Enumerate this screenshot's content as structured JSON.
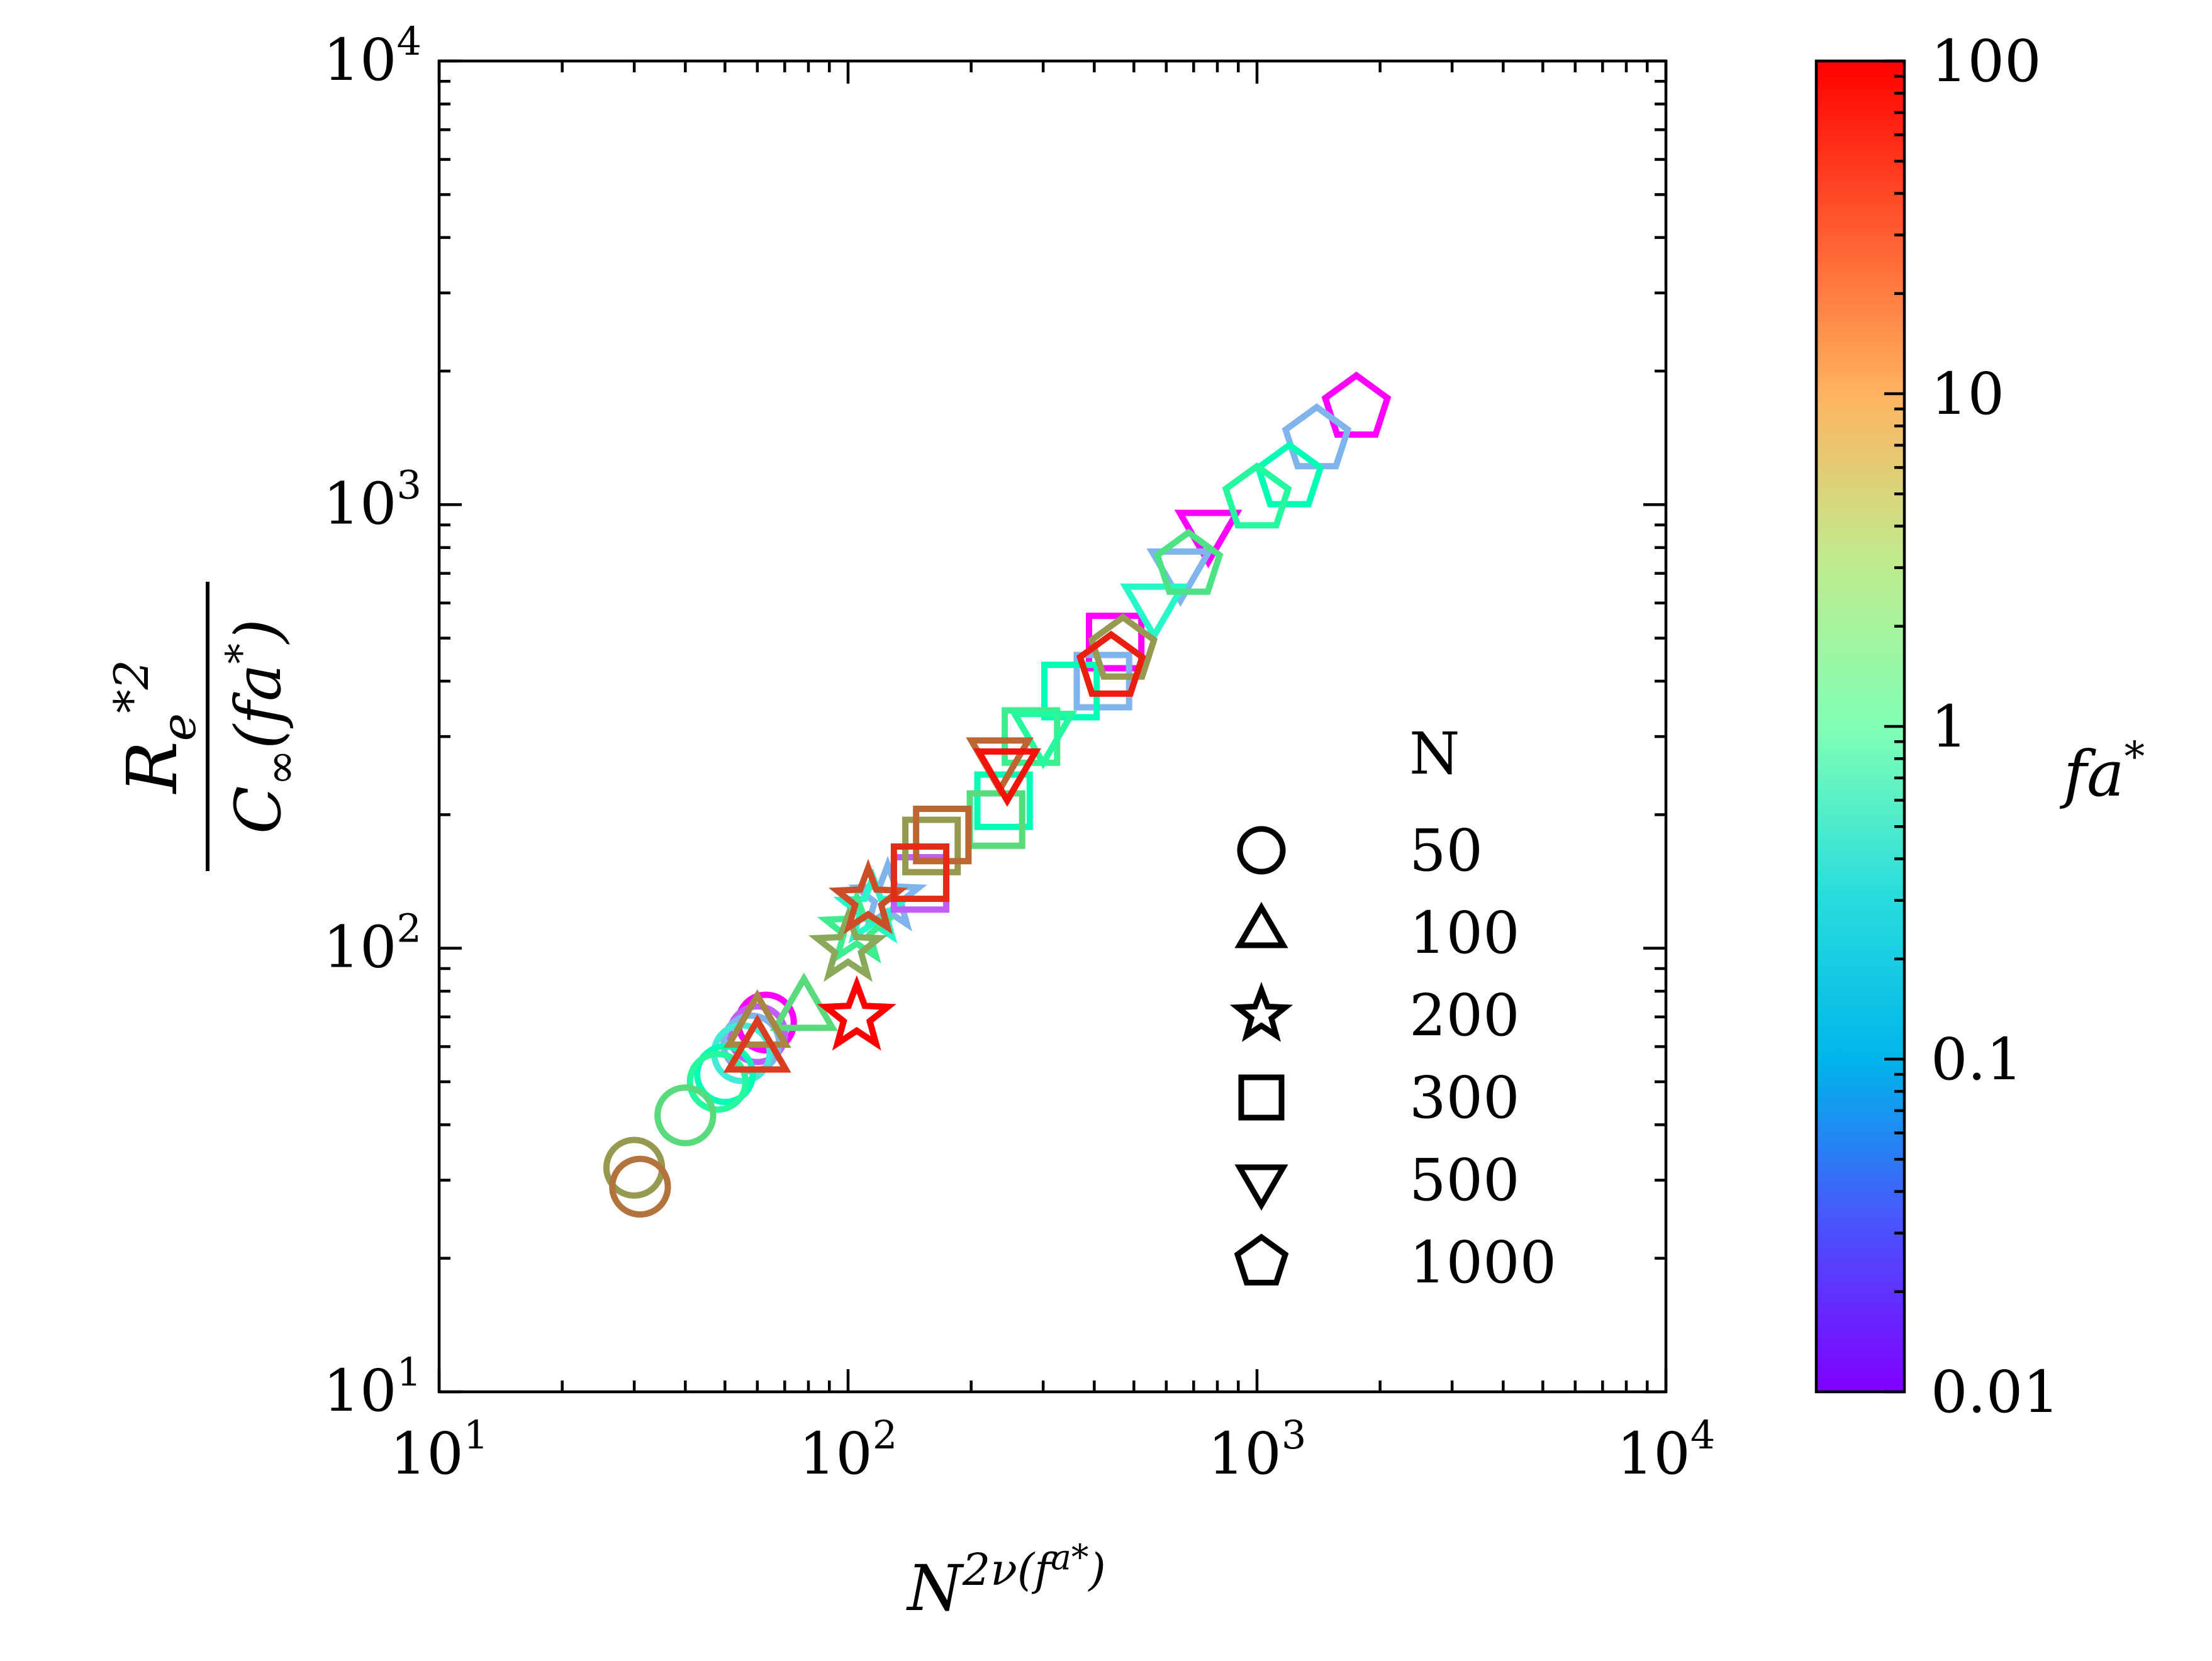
{
  "chart_data": {
    "type": "scatter",
    "xscale": "log",
    "yscale": "log",
    "xlim": [
      10,
      10000
    ],
    "ylim": [
      10,
      10000
    ],
    "xlabel": "N^{2ν(f a*)}",
    "ylabel": "R_e*^2 / C∞(f a*)",
    "x_tick_labels": [
      {
        "value": 10,
        "base": "10",
        "exp": "1"
      },
      {
        "value": 100,
        "base": "10",
        "exp": "2"
      },
      {
        "value": 1000,
        "base": "10",
        "exp": "3"
      },
      {
        "value": 10000,
        "base": "10",
        "exp": "4"
      }
    ],
    "y_tick_labels": [
      {
        "value": 10,
        "base": "10",
        "exp": "1"
      },
      {
        "value": 100,
        "base": "10",
        "exp": "2"
      },
      {
        "value": 1000,
        "base": "10",
        "exp": "3"
      },
      {
        "value": 10000,
        "base": "10",
        "exp": "4"
      }
    ],
    "legend": {
      "title": "N",
      "entries": [
        {
          "N": 50,
          "label": "50",
          "marker": "circle"
        },
        {
          "N": 100,
          "label": "100",
          "marker": "triangle"
        },
        {
          "N": 200,
          "label": "200",
          "marker": "star"
        },
        {
          "N": 300,
          "label": "300",
          "marker": "square"
        },
        {
          "N": 500,
          "label": "500",
          "marker": "triangle-down"
        },
        {
          "N": 1000,
          "label": "1000",
          "marker": "pentagon"
        }
      ]
    },
    "colorbar": {
      "label": "f a*",
      "scale": "log",
      "range": [
        0.01,
        100
      ],
      "colormap": "rainbow",
      "ticks": [
        {
          "value": 0.01,
          "label": "0.01"
        },
        {
          "value": 0.1,
          "label": "0.1"
        },
        {
          "value": 1,
          "label": "1"
        },
        {
          "value": 10,
          "label": "10"
        },
        {
          "value": 100,
          "label": "100"
        }
      ]
    },
    "series": [
      {
        "N": 50,
        "marker": "circle",
        "points": [
          {
            "x": 63,
            "y": 68,
            "fa": 0.01
          },
          {
            "x": 60,
            "y": 64,
            "fa": 0.03
          },
          {
            "x": 58,
            "y": 61,
            "fa": 0.1
          },
          {
            "x": 55,
            "y": 58,
            "fa": 0.3
          },
          {
            "x": 50,
            "y": 52,
            "fa": 1
          },
          {
            "x": 48,
            "y": 50,
            "fa": 2
          },
          {
            "x": 40,
            "y": 42,
            "fa": 5
          },
          {
            "x": 30,
            "y": 32,
            "fa": 15
          },
          {
            "x": 31,
            "y": 29,
            "fa": 25
          }
        ]
      },
      {
        "N": 100,
        "marker": "triangle",
        "points": [
          {
            "x": 78,
            "y": 72,
            "fa": 5
          },
          {
            "x": 60,
            "y": 66,
            "fa": 20
          },
          {
            "x": 60,
            "y": 58,
            "fa": 50
          }
        ]
      },
      {
        "N": 200,
        "marker": "star",
        "points": [
          {
            "x": 125,
            "y": 130,
            "fa": 0.1
          },
          {
            "x": 115,
            "y": 122,
            "fa": 0.5
          },
          {
            "x": 105,
            "y": 110,
            "fa": 3
          },
          {
            "x": 100,
            "y": 100,
            "fa": 12
          },
          {
            "x": 112,
            "y": 128,
            "fa": 40
          },
          {
            "x": 105,
            "y": 70,
            "fa": 100
          }
        ]
      },
      {
        "N": 300,
        "marker": "square",
        "points": [
          {
            "x": 150,
            "y": 140,
            "fa": 0.03
          },
          {
            "x": 240,
            "y": 215,
            "fa": 1
          },
          {
            "x": 230,
            "y": 195,
            "fa": 5
          },
          {
            "x": 160,
            "y": 170,
            "fa": 15
          },
          {
            "x": 170,
            "y": 180,
            "fa": 30
          },
          {
            "x": 150,
            "y": 148,
            "fa": 60
          },
          {
            "x": 450,
            "y": 490,
            "fa": 0.01
          },
          {
            "x": 420,
            "y": 400,
            "fa": 0.1
          },
          {
            "x": 350,
            "y": 380,
            "fa": 1
          },
          {
            "x": 280,
            "y": 300,
            "fa": 3
          }
        ]
      },
      {
        "N": 500,
        "marker": "triangle-down",
        "points": [
          {
            "x": 760,
            "y": 880,
            "fa": 0.01
          },
          {
            "x": 650,
            "y": 720,
            "fa": 0.1
          },
          {
            "x": 560,
            "y": 600,
            "fa": 0.5
          },
          {
            "x": 300,
            "y": 310,
            "fa": 2
          },
          {
            "x": 235,
            "y": 270,
            "fa": 30
          },
          {
            "x": 245,
            "y": 255,
            "fa": 80
          }
        ]
      },
      {
        "N": 1000,
        "marker": "pentagon",
        "points": [
          {
            "x": 1750,
            "y": 1650,
            "fa": 0.01
          },
          {
            "x": 1400,
            "y": 1400,
            "fa": 0.1
          },
          {
            "x": 1200,
            "y": 1150,
            "fa": 1
          },
          {
            "x": 1000,
            "y": 1030,
            "fa": 2
          },
          {
            "x": 680,
            "y": 730,
            "fa": 4
          },
          {
            "x": 470,
            "y": 470,
            "fa": 15
          },
          {
            "x": 440,
            "y": 430,
            "fa": 70
          }
        ]
      }
    ]
  }
}
